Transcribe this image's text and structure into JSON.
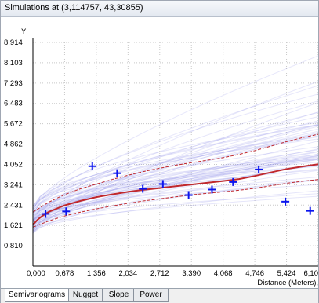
{
  "window": {
    "title": "Simulations at (3,114757, 43,30855)"
  },
  "tabs": [
    {
      "label": "Semivariograms",
      "active": true
    },
    {
      "label": "Nugget",
      "active": false
    },
    {
      "label": "Slope",
      "active": false
    },
    {
      "label": "Power",
      "active": false
    }
  ],
  "chart_data": {
    "type": "line",
    "ylabel": "Y",
    "xlabel": "Distance (Meters),",
    "x_ticks": [
      "0,000",
      "0,678",
      "1,356",
      "2,034",
      "2,712",
      "3,390",
      "4,068",
      "4,746",
      "5,424",
      "6,10"
    ],
    "y_ticks": [
      "0,810",
      "1,621",
      "2,431",
      "3,241",
      "4,052",
      "4,862",
      "5,672",
      "6,483",
      "7,293",
      "8,103",
      "8,914"
    ],
    "xlim": [
      0,
      6.102
    ],
    "ylim": [
      0,
      8.914
    ],
    "grid": true,
    "colors": {
      "simulations": "#8f8fe8",
      "mean": "#c0282d",
      "quantiles": "#c0282d",
      "empirical": "#0a14ee"
    },
    "series": [
      {
        "style": "solid-red",
        "x": [
          0,
          0.1,
          0.2,
          0.339,
          0.678,
          1.017,
          1.356,
          1.695,
          2.034,
          2.373,
          2.712,
          3.051,
          3.39,
          3.729,
          4.068,
          4.407,
          4.746,
          5.085,
          5.424,
          5.763,
          6.102
        ],
        "y": [
          1.65,
          1.85,
          2.0,
          2.16,
          2.42,
          2.6,
          2.75,
          2.86,
          2.96,
          3.04,
          3.11,
          3.18,
          3.25,
          3.32,
          3.39,
          3.47,
          3.59,
          3.73,
          3.87,
          3.97,
          4.06
        ]
      },
      {
        "style": "dashed-red-upper",
        "x": [
          0,
          0.339,
          0.678,
          1.017,
          1.356,
          1.695,
          2.034,
          2.373,
          2.712,
          3.051,
          3.39,
          3.729,
          4.068,
          4.407,
          4.746,
          5.085,
          5.424,
          5.763,
          6.102
        ],
        "y": [
          2.15,
          2.55,
          2.85,
          3.08,
          3.27,
          3.45,
          3.62,
          3.77,
          3.9,
          4.02,
          4.12,
          4.22,
          4.32,
          4.45,
          4.6,
          4.78,
          4.96,
          5.12,
          5.25
        ]
      },
      {
        "style": "dashed-red-lower",
        "x": [
          0,
          0.339,
          0.678,
          1.017,
          1.356,
          1.695,
          2.034,
          2.373,
          2.712,
          3.051,
          3.39,
          3.729,
          4.068,
          4.407,
          4.746,
          5.085,
          5.424,
          5.763,
          6.102
        ],
        "y": [
          1.55,
          1.8,
          2.0,
          2.15,
          2.28,
          2.4,
          2.5,
          2.6,
          2.68,
          2.76,
          2.84,
          2.9,
          2.96,
          3.02,
          3.1,
          3.2,
          3.3,
          3.38,
          3.45
        ]
      }
    ],
    "empirical_points": [
      {
        "x": 0.27,
        "y": 2.08
      },
      {
        "x": 0.71,
        "y": 2.18
      },
      {
        "x": 1.27,
        "y": 3.98
      },
      {
        "x": 1.8,
        "y": 3.7
      },
      {
        "x": 2.35,
        "y": 3.08
      },
      {
        "x": 2.78,
        "y": 3.27
      },
      {
        "x": 3.33,
        "y": 2.83
      },
      {
        "x": 3.83,
        "y": 3.05
      },
      {
        "x": 4.28,
        "y": 3.35
      },
      {
        "x": 4.83,
        "y": 3.85
      },
      {
        "x": 5.4,
        "y": 2.57
      },
      {
        "x": 5.93,
        "y": 2.2
      }
    ],
    "simulation_count": 60
  }
}
